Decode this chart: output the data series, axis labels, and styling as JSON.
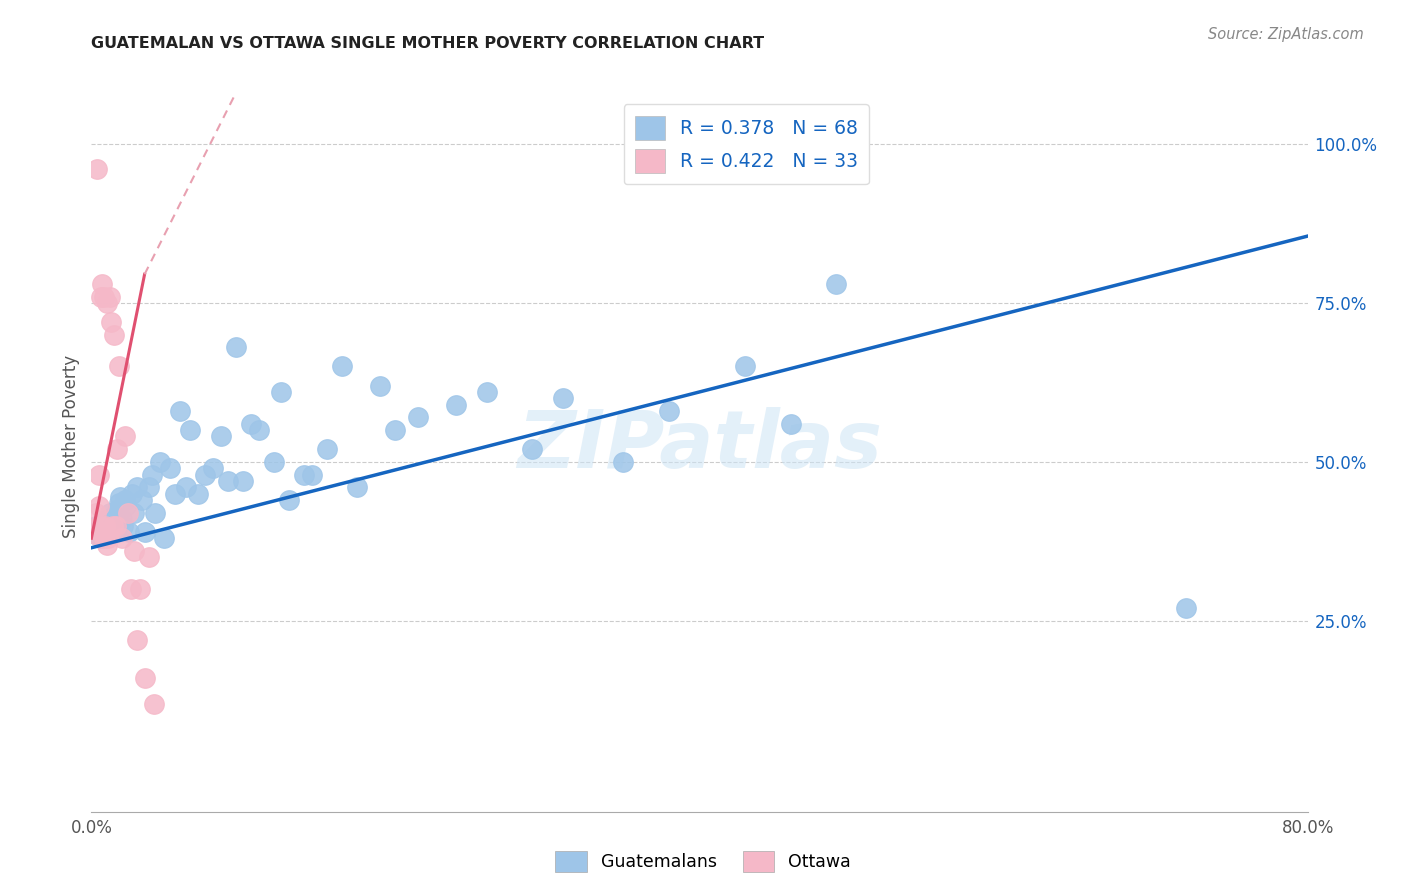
{
  "title": "GUATEMALAN VS OTTAWA SINGLE MOTHER POVERTY CORRELATION CHART",
  "source": "Source: ZipAtlas.com",
  "ylabel": "Single Mother Poverty",
  "xlim": [
    0.0,
    0.8
  ],
  "ylim": [
    -0.05,
    1.1
  ],
  "xtick_positions": [
    0.0,
    0.1,
    0.2,
    0.3,
    0.4,
    0.5,
    0.6,
    0.7,
    0.8
  ],
  "xticklabels": [
    "0.0%",
    "",
    "",
    "",
    "",
    "",
    "",
    "",
    "80.0%"
  ],
  "ytick_right_positions": [
    0.25,
    0.5,
    0.75,
    1.0
  ],
  "ytick_right_labels": [
    "25.0%",
    "50.0%",
    "75.0%",
    "100.0%"
  ],
  "blue_R": 0.378,
  "blue_N": 68,
  "pink_R": 0.422,
  "pink_N": 33,
  "blue_dot_color": "#9ec5e8",
  "pink_dot_color": "#f5b8c8",
  "blue_line_color": "#1565c0",
  "pink_line_color": "#e05070",
  "pink_dash_color": "#e8a0b0",
  "watermark": "ZIPatlas",
  "bg_color": "#ffffff",
  "legend_label_blue": "Guatemalans",
  "legend_label_pink": "Ottawa",
  "grid_color": "#cccccc",
  "blue_trend": [
    0.0,
    0.8,
    0.365,
    0.855
  ],
  "pink_solid_trend": [
    0.0,
    0.035,
    0.38,
    0.795
  ],
  "pink_dash_trend": [
    0.035,
    0.095,
    0.795,
    1.08
  ],
  "blue_x": [
    0.002,
    0.003,
    0.004,
    0.005,
    0.006,
    0.007,
    0.008,
    0.009,
    0.01,
    0.011,
    0.012,
    0.013,
    0.014,
    0.015,
    0.016,
    0.017,
    0.018,
    0.019,
    0.02,
    0.021,
    0.022,
    0.023,
    0.025,
    0.027,
    0.028,
    0.03,
    0.033,
    0.035,
    0.038,
    0.04,
    0.042,
    0.045,
    0.048,
    0.052,
    0.055,
    0.058,
    0.062,
    0.065,
    0.07,
    0.075,
    0.08,
    0.085,
    0.09,
    0.095,
    0.1,
    0.105,
    0.11,
    0.12,
    0.125,
    0.13,
    0.14,
    0.145,
    0.155,
    0.165,
    0.175,
    0.19,
    0.2,
    0.215,
    0.24,
    0.26,
    0.29,
    0.31,
    0.35,
    0.38,
    0.43,
    0.46,
    0.49,
    0.72
  ],
  "blue_y": [
    0.39,
    0.4,
    0.385,
    0.395,
    0.38,
    0.39,
    0.405,
    0.395,
    0.41,
    0.395,
    0.42,
    0.41,
    0.4,
    0.415,
    0.39,
    0.425,
    0.435,
    0.445,
    0.41,
    0.4,
    0.44,
    0.43,
    0.39,
    0.45,
    0.42,
    0.46,
    0.44,
    0.39,
    0.46,
    0.48,
    0.42,
    0.5,
    0.38,
    0.49,
    0.45,
    0.58,
    0.46,
    0.55,
    0.45,
    0.48,
    0.49,
    0.54,
    0.47,
    0.68,
    0.47,
    0.56,
    0.55,
    0.5,
    0.61,
    0.44,
    0.48,
    0.48,
    0.52,
    0.65,
    0.46,
    0.62,
    0.55,
    0.57,
    0.59,
    0.61,
    0.52,
    0.6,
    0.5,
    0.58,
    0.65,
    0.56,
    0.78,
    0.27
  ],
  "pink_x": [
    0.002,
    0.003,
    0.004,
    0.004,
    0.005,
    0.005,
    0.006,
    0.006,
    0.007,
    0.007,
    0.008,
    0.008,
    0.009,
    0.01,
    0.01,
    0.011,
    0.012,
    0.013,
    0.014,
    0.015,
    0.016,
    0.017,
    0.018,
    0.02,
    0.022,
    0.024,
    0.026,
    0.028,
    0.03,
    0.032,
    0.035,
    0.038,
    0.041
  ],
  "pink_y": [
    0.395,
    0.42,
    0.385,
    0.96,
    0.43,
    0.48,
    0.4,
    0.76,
    0.39,
    0.78,
    0.38,
    0.76,
    0.4,
    0.37,
    0.75,
    0.38,
    0.76,
    0.72,
    0.4,
    0.7,
    0.4,
    0.52,
    0.65,
    0.38,
    0.54,
    0.42,
    0.3,
    0.36,
    0.22,
    0.3,
    0.16,
    0.35,
    0.12
  ]
}
